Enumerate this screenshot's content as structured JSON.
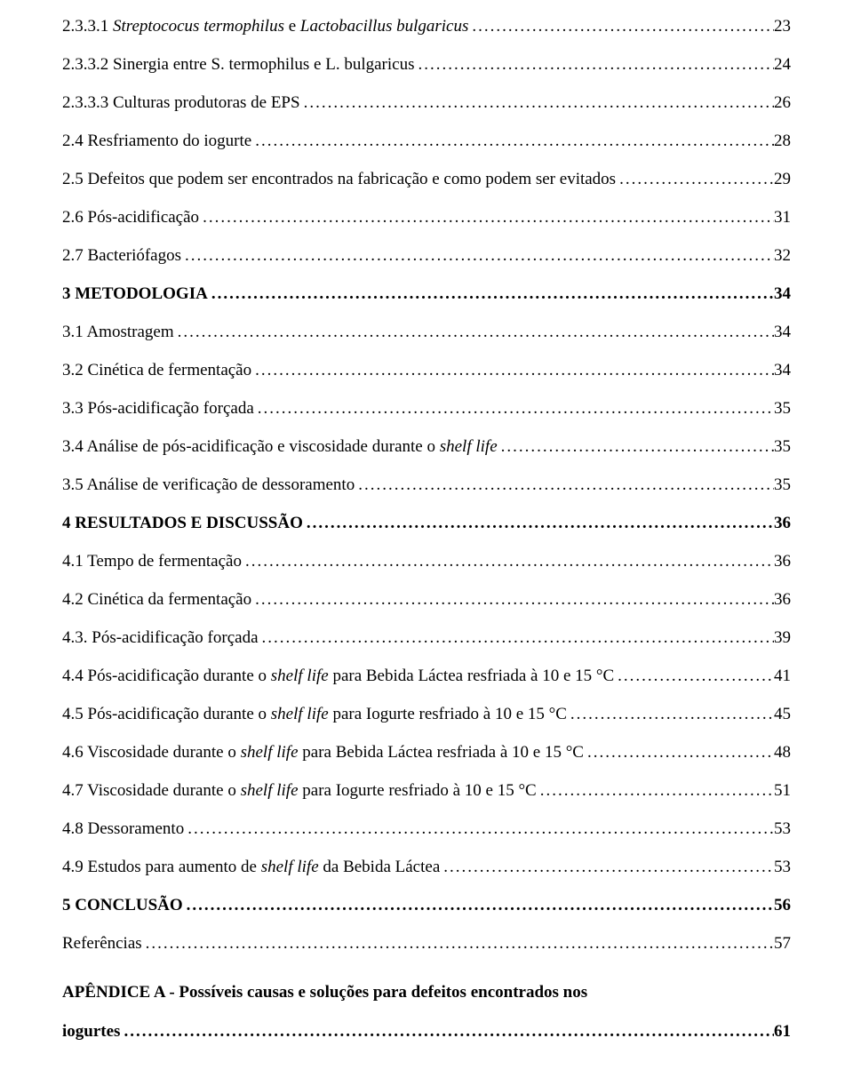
{
  "toc": [
    {
      "label_html": "2.3.3.1 <i>Streptococus termophilus</i> e <i>Lactobacillus bulgaricus</i>",
      "page": "23",
      "bold": false
    },
    {
      "label_html": "2.3.3.2 Sinergia entre S. termophilus e L. bulgaricus",
      "page": "24",
      "bold": false
    },
    {
      "label_html": "2.3.3.3 Culturas produtoras de EPS",
      "page": "26",
      "bold": false
    },
    {
      "label_html": "2.4 Resfriamento do iogurte",
      "page": "28",
      "bold": false
    },
    {
      "label_html": "2.5 Defeitos que podem ser encontrados na fabricação e como podem ser evitados",
      "page": "29",
      "bold": false
    },
    {
      "label_html": "2.6 Pós-acidificação",
      "page": "31",
      "bold": false
    },
    {
      "label_html": "2.7 Bacteriófagos",
      "page": "32",
      "bold": false
    },
    {
      "label_html": "3 METODOLOGIA",
      "page": "34",
      "bold": true
    },
    {
      "label_html": "3.1 Amostragem",
      "page": "34",
      "bold": false
    },
    {
      "label_html": "3.2 Cinética de fermentação",
      "page": "34",
      "bold": false
    },
    {
      "label_html": "3.3 Pós-acidificação forçada",
      "page": "35",
      "bold": false
    },
    {
      "label_html": "3.4 Análise de pós-acidificação e viscosidade durante o <i>shelf life</i>",
      "page": "35",
      "bold": false
    },
    {
      "label_html": "3.5 Análise de verificação de dessoramento",
      "page": "35",
      "bold": false
    },
    {
      "label_html": "4 RESULTADOS E DISCUSSÃO",
      "page": "36",
      "bold": true
    },
    {
      "label_html": "4.1 Tempo de fermentação",
      "page": "36",
      "bold": false
    },
    {
      "label_html": "4.2 Cinética da fermentação",
      "page": "36",
      "bold": false
    },
    {
      "label_html": "4.3. Pós-acidificação forçada",
      "page": "39",
      "bold": false
    },
    {
      "label_html": "4.4 Pós-acidificação durante o <i>shelf life</i> para Bebida Láctea resfriada à 10 e 15 °C",
      "page": "41",
      "bold": false
    },
    {
      "label_html": "4.5 Pós-acidificação durante o <i>shelf life</i> para Iogurte resfriado à 10 e 15 °C",
      "page": "45",
      "bold": false
    },
    {
      "label_html": "4.6 Viscosidade durante o <i>shelf life</i> para Bebida Láctea resfriada à 10 e 15 °C",
      "page": "48",
      "bold": false
    },
    {
      "label_html": "4.7 Viscosidade durante o <i>shelf life</i> para Iogurte resfriado à 10 e 15 °C",
      "page": "51",
      "bold": false
    },
    {
      "label_html": "4.8 Dessoramento",
      "page": "53",
      "bold": false
    },
    {
      "label_html": "4.9 Estudos para aumento de <i>shelf life</i> da Bebida Láctea",
      "page": "53",
      "bold": false
    },
    {
      "label_html": "5 CONCLUSÃO",
      "page": "56",
      "bold": true
    },
    {
      "label_html": "Referências",
      "page": "57",
      "bold": false
    }
  ],
  "appendix": {
    "line1": "APÊNDICE A - Possíveis causas e soluções para defeitos encontrados nos",
    "line2_label": "iogurtes",
    "page": "61"
  }
}
